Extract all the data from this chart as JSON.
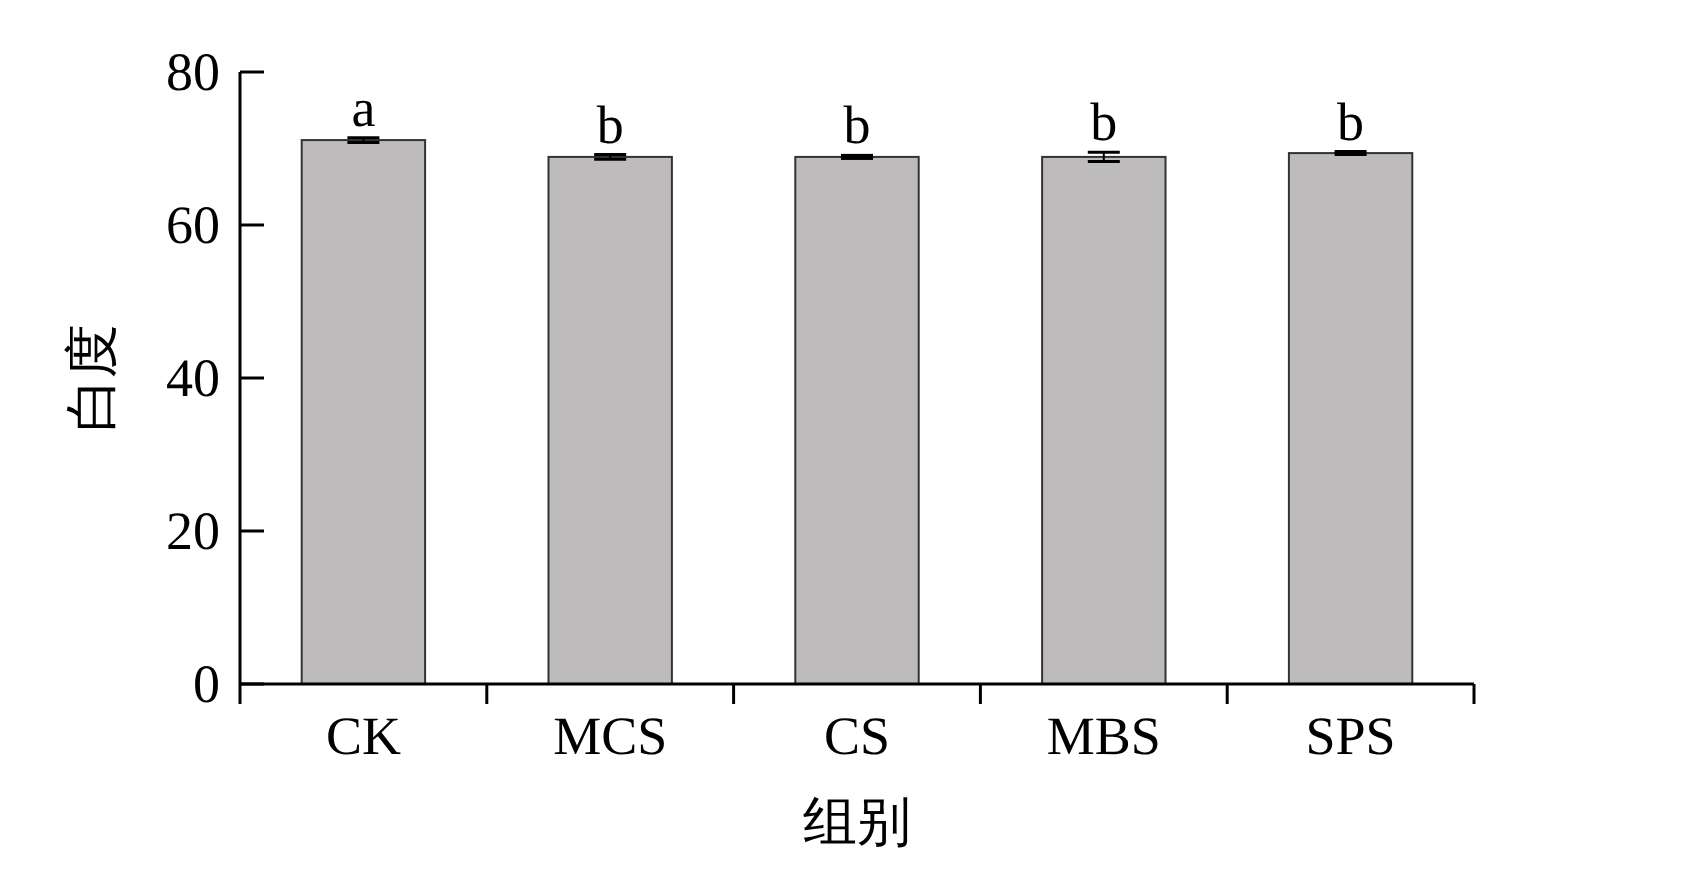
{
  "chart_data": {
    "type": "bar",
    "xlabel": "组别",
    "ylabel": "白度",
    "categories": [
      "CK",
      "MCS",
      "CS",
      "MBS",
      "SPS"
    ],
    "values": [
      71.1,
      68.9,
      68.9,
      68.9,
      69.4
    ],
    "errors": [
      0.3,
      0.3,
      0.2,
      0.6,
      0.2
    ],
    "color": "#bdbbbc",
    "ylim": [
      0,
      80
    ],
    "yticks": [
      0,
      20,
      40,
      60,
      80
    ],
    "grid": false,
    "annotations": [
      {
        "text": "a",
        "x": "CK",
        "y": 71.4
      },
      {
        "text": "b",
        "x": "MCS",
        "y": 69.2
      },
      {
        "text": "b",
        "x": "CS",
        "y": 69.1
      },
      {
        "text": "b",
        "x": "MBS",
        "y": 69.5
      },
      {
        "text": "b",
        "x": "SPS",
        "y": 69.6
      }
    ]
  }
}
